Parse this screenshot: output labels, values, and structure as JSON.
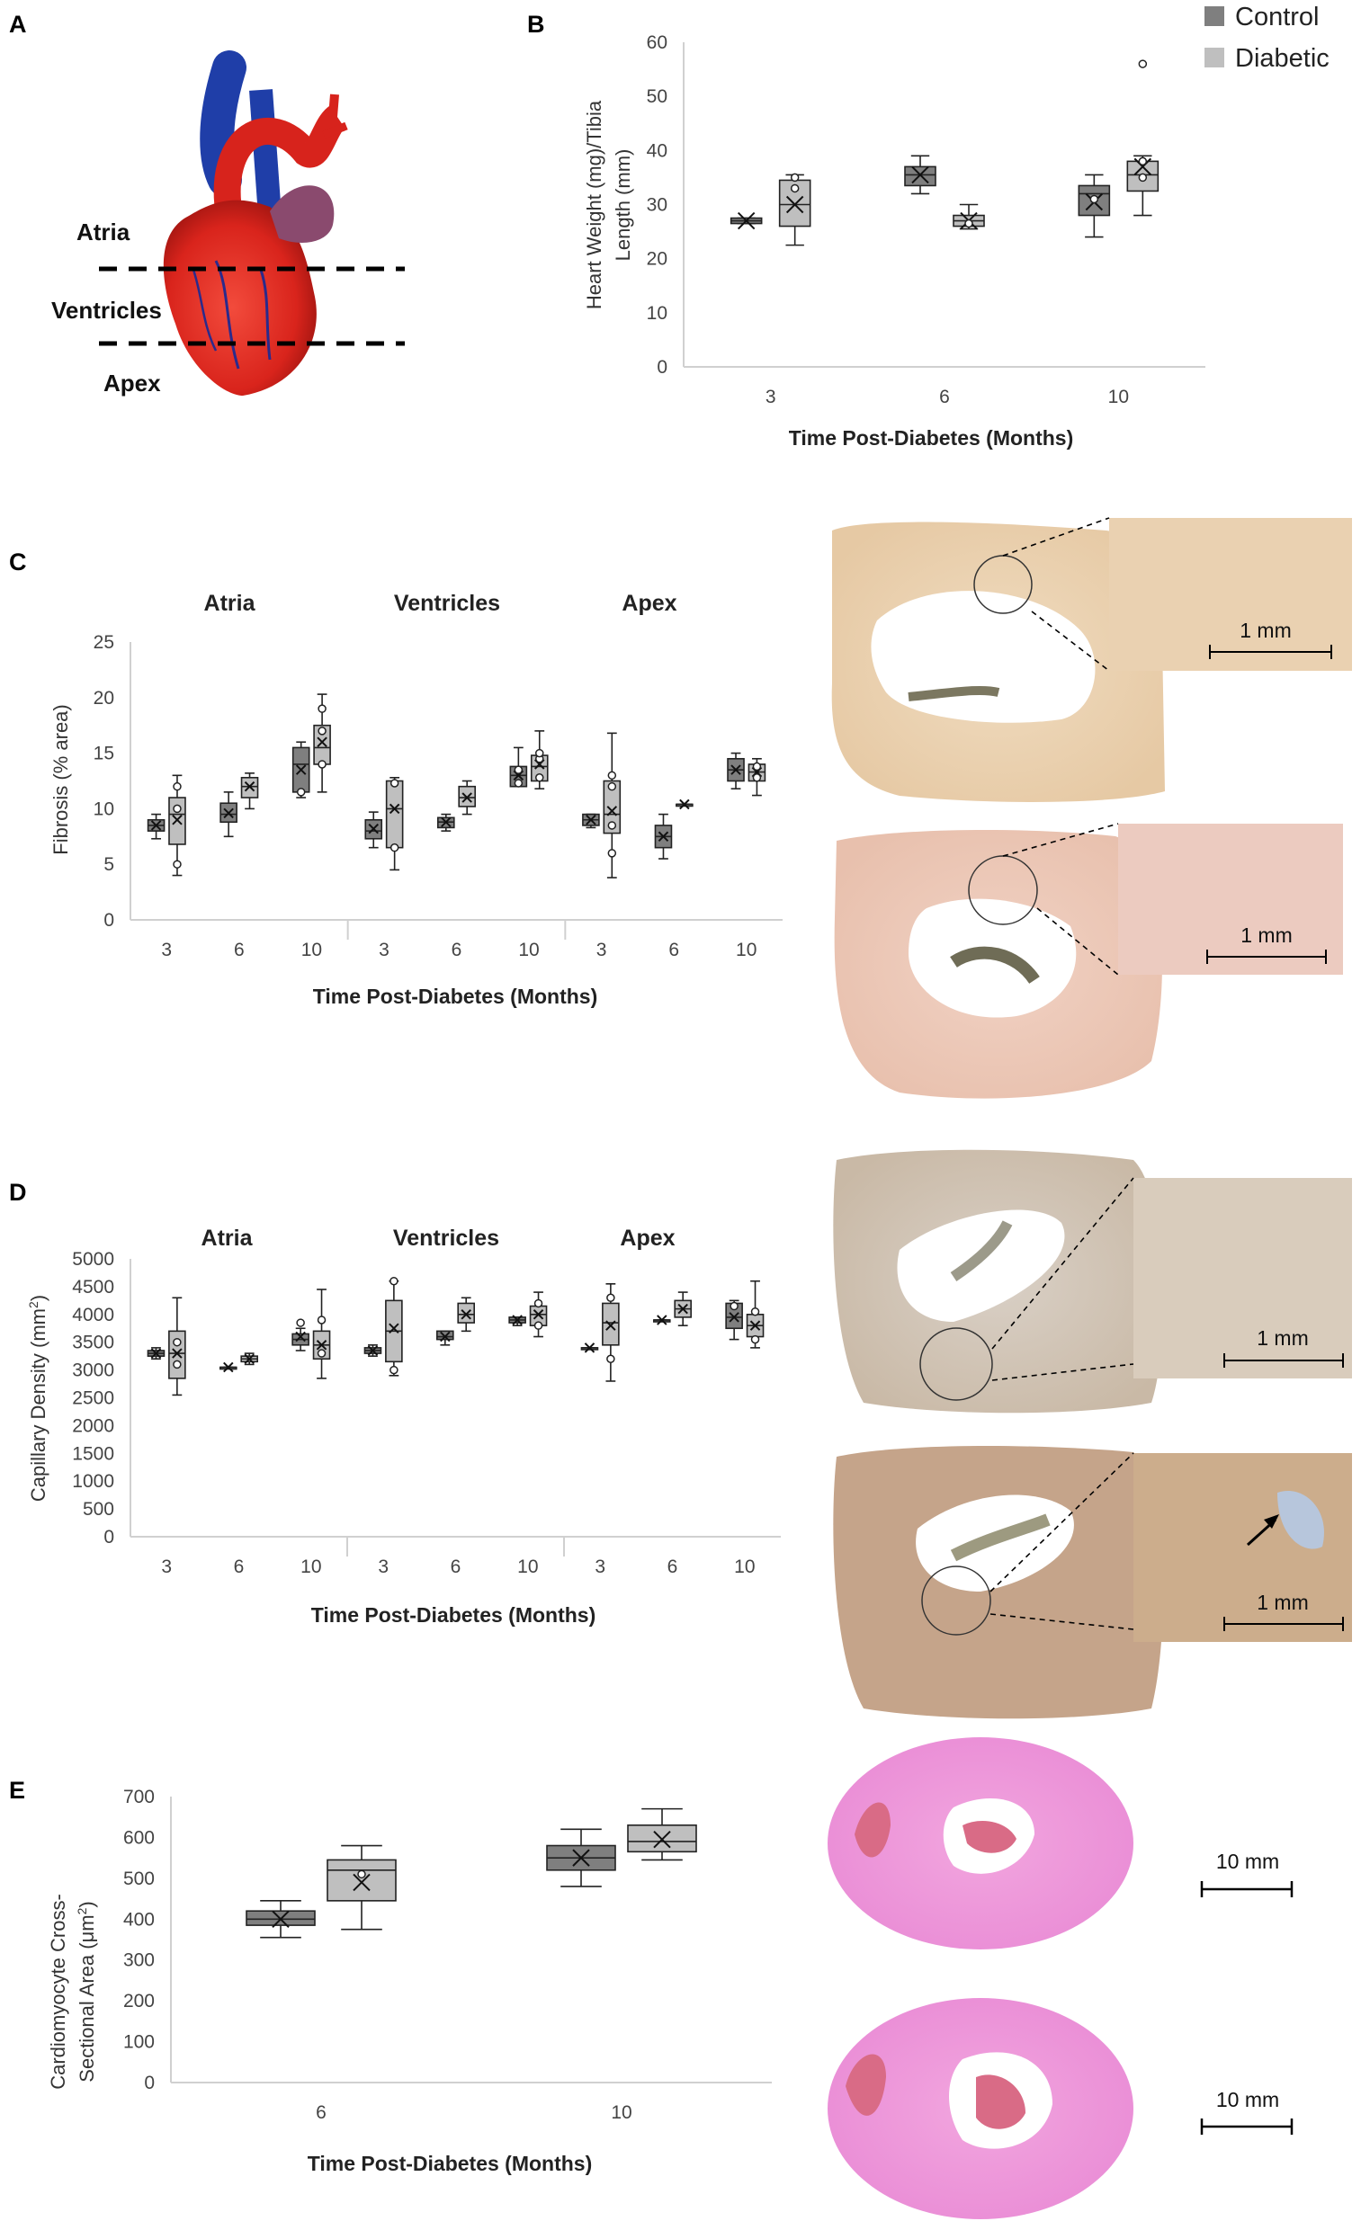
{
  "colors": {
    "control": "#7f7f7f",
    "diabetic": "#bfbfbf",
    "axis": "#d0d0d0",
    "whisker": "#222222"
  },
  "panel_a": {
    "label": "A",
    "regions": [
      "Atria",
      "Ventricles",
      "Apex"
    ]
  },
  "legend": {
    "control": "Control",
    "diabetic": "Diabetic"
  },
  "images": {
    "c_scale": "1 mm",
    "d_scale": "1 mm",
    "e_scale": "10 mm"
  },
  "chart_data": [
    {
      "id": "B",
      "label": "B",
      "type": "box",
      "ylabel": "Heart Weight (mg)/Tibia Length (mm)",
      "ylabel_lines": [
        "Heart Weight (mg)/Tibia",
        "Length (mm)"
      ],
      "xlabel": "Time Post-Diabetes (Months)",
      "ylim": [
        0,
        60
      ],
      "yticks": [
        0,
        10,
        20,
        30,
        40,
        50,
        60
      ],
      "groups": [
        {
          "name": "3",
          "control": {
            "q1": 26.5,
            "median": 27,
            "q3": 27.5,
            "lo": 26.5,
            "hi": 27.5,
            "mean": 27,
            "points": []
          },
          "diabetic": {
            "q1": 26,
            "median": 30,
            "q3": 34.5,
            "lo": 22.5,
            "hi": 35.5,
            "mean": 30,
            "points": [
              33,
              35
            ]
          }
        },
        {
          "name": "6",
          "control": {
            "q1": 33.5,
            "median": 35.5,
            "q3": 37,
            "lo": 32,
            "hi": 39,
            "mean": 35.5,
            "points": []
          },
          "diabetic": {
            "q1": 26,
            "median": 27,
            "q3": 28,
            "lo": 25.5,
            "hi": 30,
            "mean": 27,
            "points": [
              26.5
            ]
          }
        },
        {
          "name": "10",
          "control": {
            "q1": 28,
            "median": 32,
            "q3": 33.5,
            "lo": 24,
            "hi": 35.5,
            "mean": 30.5,
            "points": [
              31
            ]
          },
          "diabetic": {
            "q1": 32.5,
            "median": 35.5,
            "q3": 38,
            "lo": 28,
            "hi": 39,
            "mean": 37,
            "points": [
              56,
              38,
              35
            ]
          }
        }
      ]
    },
    {
      "id": "C",
      "label": "C",
      "type": "box",
      "ylabel": "Fibrosis (% area)",
      "xlabel": "Time Post-Diabetes (Months)",
      "ylim": [
        0,
        25
      ],
      "yticks": [
        0,
        5,
        10,
        15,
        20,
        25
      ],
      "sections": [
        "Atria",
        "Ventricles",
        "Apex"
      ],
      "categories": [
        "3",
        "6",
        "10"
      ],
      "data": [
        [
          {
            "control": {
              "q1": 8,
              "median": 8.5,
              "q3": 9,
              "lo": 7.3,
              "hi": 9.5,
              "mean": 8.5,
              "points": []
            },
            "diabetic": {
              "q1": 6.8,
              "median": 9.5,
              "q3": 11,
              "lo": 4,
              "hi": 13,
              "mean": 9,
              "points": [
                5,
                10,
                12
              ]
            }
          },
          {
            "control": {
              "q1": 8.8,
              "median": 9.5,
              "q3": 10.5,
              "lo": 7.5,
              "hi": 11.5,
              "mean": 9.6,
              "points": []
            },
            "diabetic": {
              "q1": 11,
              "median": 12,
              "q3": 12.8,
              "lo": 10,
              "hi": 13.2,
              "mean": 12,
              "points": []
            }
          },
          {
            "control": {
              "q1": 11.5,
              "median": 14,
              "q3": 15.5,
              "lo": 11,
              "hi": 16,
              "mean": 13.5,
              "points": [
                11.5
              ]
            },
            "diabetic": {
              "q1": 14,
              "median": 15.5,
              "q3": 17.5,
              "lo": 11.5,
              "hi": 20.3,
              "mean": 16,
              "points": [
                19,
                17,
                14
              ]
            }
          }
        ],
        [
          {
            "control": {
              "q1": 7.3,
              "median": 8,
              "q3": 9,
              "lo": 6.5,
              "hi": 9.7,
              "mean": 8.2,
              "points": []
            },
            "diabetic": {
              "q1": 6.5,
              "median": 10,
              "q3": 12.5,
              "lo": 4.5,
              "hi": 12.8,
              "mean": 10,
              "points": [
                6.5,
                12.3
              ]
            }
          },
          {
            "control": {
              "q1": 8.3,
              "median": 8.8,
              "q3": 9.2,
              "lo": 8,
              "hi": 9.5,
              "mean": 8.8,
              "points": []
            },
            "diabetic": {
              "q1": 10.2,
              "median": 11,
              "q3": 12,
              "lo": 9.5,
              "hi": 12.5,
              "mean": 11,
              "points": []
            }
          },
          {
            "control": {
              "q1": 12,
              "median": 13,
              "q3": 13.8,
              "lo": 12,
              "hi": 15.5,
              "mean": 13,
              "points": [
                12.3,
                13.5
              ]
            },
            "diabetic": {
              "q1": 12.5,
              "median": 13.8,
              "q3": 14.8,
              "lo": 11.8,
              "hi": 17,
              "mean": 14,
              "points": [
                12.8,
                14.5,
                15
              ]
            }
          }
        ],
        [
          {
            "control": {
              "q1": 8.5,
              "median": 9,
              "q3": 9.5,
              "lo": 8.3,
              "hi": 9.5,
              "mean": 9,
              "points": []
            },
            "diabetic": {
              "q1": 7.8,
              "median": 9.5,
              "q3": 12.5,
              "lo": 3.8,
              "hi": 16.8,
              "mean": 9.8,
              "points": [
                6,
                8.5,
                12,
                13
              ]
            }
          },
          {
            "control": {
              "q1": 6.5,
              "median": 7.5,
              "q3": 8.5,
              "lo": 5.5,
              "hi": 9.5,
              "mean": 7.5,
              "points": []
            },
            "diabetic": {
              "q1": 10.4,
              "median": 10.4,
              "q3": 10.4,
              "lo": 10.4,
              "hi": 10.4,
              "mean": 10.4,
              "points": []
            }
          },
          {
            "control": {
              "q1": 12.5,
              "median": 13.5,
              "q3": 14.5,
              "lo": 11.8,
              "hi": 15,
              "mean": 13.5,
              "points": []
            },
            "diabetic": {
              "q1": 12.5,
              "median": 13.3,
              "q3": 14,
              "lo": 11.2,
              "hi": 14.5,
              "mean": 13.3,
              "points": [
                12.8,
                13.8
              ]
            }
          }
        ]
      ]
    },
    {
      "id": "D",
      "label": "D",
      "type": "box",
      "ylabel": "Capillary Density (mm²)",
      "ylabel_text": "Capillary Density (mm",
      "ylabel_sup": "2",
      "ylabel_end": ")",
      "xlabel": "Time Post-Diabetes (Months)",
      "ylim": [
        0,
        5000
      ],
      "yticks": [
        0,
        500,
        1000,
        1500,
        2000,
        2500,
        3000,
        3500,
        4000,
        4500,
        5000
      ],
      "sections": [
        "Atria",
        "Ventricles",
        "Apex"
      ],
      "categories": [
        "3",
        "6",
        "10"
      ],
      "data": [
        [
          {
            "control": {
              "q1": 3250,
              "median": 3300,
              "q3": 3350,
              "lo": 3200,
              "hi": 3400,
              "mean": 3300,
              "points": []
            },
            "diabetic": {
              "q1": 2850,
              "median": 3300,
              "q3": 3700,
              "lo": 2550,
              "hi": 4300,
              "mean": 3300,
              "points": [
                3100,
                3500
              ]
            }
          },
          {
            "control": {
              "q1": 3050,
              "median": 3050,
              "q3": 3050,
              "lo": 3050,
              "hi": 3050,
              "mean": 3050,
              "points": []
            },
            "diabetic": {
              "q1": 3150,
              "median": 3200,
              "q3": 3250,
              "lo": 3100,
              "hi": 3300,
              "mean": 3200,
              "points": []
            }
          },
          {
            "control": {
              "q1": 3450,
              "median": 3550,
              "q3": 3650,
              "lo": 3350,
              "hi": 3750,
              "mean": 3600,
              "points": [
                3850
              ]
            },
            "diabetic": {
              "q1": 3200,
              "median": 3450,
              "q3": 3700,
              "lo": 2850,
              "hi": 4450,
              "mean": 3450,
              "points": [
                3900,
                3300
              ]
            }
          }
        ],
        [
          {
            "control": {
              "q1": 3300,
              "median": 3350,
              "q3": 3400,
              "lo": 3250,
              "hi": 3450,
              "mean": 3350,
              "points": []
            },
            "diabetic": {
              "q1": 3150,
              "median": 3700,
              "q3": 4250,
              "lo": 2900,
              "hi": 4600,
              "mean": 3750,
              "points": [
                3000,
                4600
              ]
            }
          },
          {
            "control": {
              "q1": 3550,
              "median": 3600,
              "q3": 3700,
              "lo": 3450,
              "hi": 3700,
              "mean": 3600,
              "points": []
            },
            "diabetic": {
              "q1": 3850,
              "median": 4000,
              "q3": 4200,
              "lo": 3700,
              "hi": 4300,
              "mean": 4000,
              "points": []
            }
          },
          {
            "control": {
              "q1": 3850,
              "median": 3900,
              "q3": 3950,
              "lo": 3800,
              "hi": 3950,
              "mean": 3900,
              "points": []
            },
            "diabetic": {
              "q1": 3800,
              "median": 4000,
              "q3": 4150,
              "lo": 3600,
              "hi": 4400,
              "mean": 4000,
              "points": [
                3800,
                4200
              ]
            }
          }
        ],
        [
          {
            "control": {
              "q1": 3400,
              "median": 3400,
              "q3": 3400,
              "lo": 3400,
              "hi": 3400,
              "mean": 3400,
              "points": []
            },
            "diabetic": {
              "q1": 3450,
              "median": 3850,
              "q3": 4200,
              "lo": 2800,
              "hi": 4550,
              "mean": 3800,
              "points": [
                3200,
                4300
              ]
            }
          },
          {
            "control": {
              "q1": 3900,
              "median": 3900,
              "q3": 3900,
              "lo": 3900,
              "hi": 3900,
              "mean": 3900,
              "points": []
            },
            "diabetic": {
              "q1": 3950,
              "median": 4100,
              "q3": 4250,
              "lo": 3800,
              "hi": 4400,
              "mean": 4100,
              "points": []
            }
          },
          {
            "control": {
              "q1": 3750,
              "median": 3950,
              "q3": 4200,
              "lo": 3550,
              "hi": 4250,
              "mean": 3950,
              "points": [
                4150
              ]
            },
            "diabetic": {
              "q1": 3600,
              "median": 3800,
              "q3": 4000,
              "lo": 3400,
              "hi": 4600,
              "mean": 3800,
              "points": [
                3550,
                4050
              ]
            }
          }
        ]
      ]
    },
    {
      "id": "E",
      "label": "E",
      "type": "box",
      "ylabel": "Cardiomyocyte Cross-Sectional Area (μm²)",
      "ylabel_lines": [
        "Cardiomyocyte Cross-",
        "Sectional Area (μm",
        "2",
        ")"
      ],
      "xlabel": "Time Post-Diabetes (Months)",
      "ylim": [
        0,
        700
      ],
      "yticks": [
        0,
        100,
        200,
        300,
        400,
        500,
        600,
        700
      ],
      "groups": [
        {
          "name": "6",
          "control": {
            "q1": 385,
            "median": 400,
            "q3": 420,
            "lo": 355,
            "hi": 445,
            "mean": 400,
            "points": []
          },
          "diabetic": {
            "q1": 445,
            "median": 520,
            "q3": 545,
            "lo": 375,
            "hi": 580,
            "mean": 490,
            "points": [
              510
            ]
          }
        },
        {
          "name": "10",
          "control": {
            "q1": 520,
            "median": 550,
            "q3": 580,
            "lo": 480,
            "hi": 620,
            "mean": 550,
            "points": []
          },
          "diabetic": {
            "q1": 565,
            "median": 590,
            "q3": 630,
            "lo": 545,
            "hi": 670,
            "mean": 595,
            "points": []
          }
        }
      ]
    }
  ]
}
